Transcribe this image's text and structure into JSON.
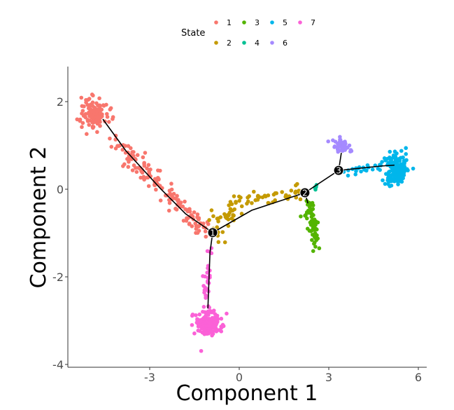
{
  "chart_data": {
    "type": "scatter",
    "xlabel": "Component 1",
    "ylabel": "Component 2",
    "xlim": [
      -5.8,
      6.3
    ],
    "ylim": [
      -4.05,
      2.8
    ],
    "xticks": [
      -3,
      0,
      3,
      6
    ],
    "yticks": [
      2,
      0,
      -2,
      -4
    ],
    "grid": false,
    "legend": {
      "title": "State",
      "placement": "top",
      "entries": [
        "1",
        "2",
        "3",
        "4",
        "5",
        "6",
        "7"
      ]
    },
    "colors": {
      "1": "#F8766D",
      "2": "#C49A00",
      "3": "#53B400",
      "4": "#00C094",
      "5": "#00B6EB",
      "6": "#A58AFF",
      "7": "#FB61D7"
    },
    "clusters": [
      {
        "state": "1",
        "center": [
          -4.85,
          1.76
        ],
        "sd": [
          0.22,
          0.18
        ],
        "n": 120
      },
      {
        "state": "1",
        "from": [
          -4.3,
          1.15
        ],
        "to": [
          -1.1,
          -0.95
        ],
        "spread": 0.12,
        "n": 150
      },
      {
        "state": "2",
        "from": [
          -0.85,
          -1.0
        ],
        "to": [
          0.0,
          -0.35
        ],
        "spread": 0.15,
        "n": 45
      },
      {
        "state": "2",
        "from": [
          0.1,
          -0.3
        ],
        "to": [
          2.1,
          -0.05
        ],
        "spread": 0.08,
        "n": 40
      },
      {
        "state": "3",
        "from": [
          2.3,
          -0.35
        ],
        "to": [
          2.55,
          -0.85
        ],
        "spread": 0.12,
        "n": 40
      },
      {
        "state": "3",
        "from": [
          2.55,
          -0.9
        ],
        "to": [
          2.45,
          -1.35
        ],
        "spread": 0.08,
        "n": 20
      },
      {
        "state": "4",
        "from": [
          2.5,
          -0.05
        ],
        "to": [
          2.6,
          0.08
        ],
        "spread": 0.02,
        "n": 5
      },
      {
        "state": "5",
        "center": [
          5.25,
          0.48
        ],
        "sd": [
          0.18,
          0.18
        ],
        "n": 160
      },
      {
        "state": "5",
        "from": [
          3.5,
          0.4
        ],
        "to": [
          4.9,
          0.55
        ],
        "spread": 0.05,
        "n": 25
      },
      {
        "state": "6",
        "center": [
          3.42,
          1.0
        ],
        "sd": [
          0.14,
          0.08
        ],
        "n": 60
      },
      {
        "state": "7",
        "center": [
          -1.05,
          -3.07
        ],
        "sd": [
          0.22,
          0.14
        ],
        "n": 150
      },
      {
        "state": "7",
        "from": [
          -1.0,
          -1.3
        ],
        "to": [
          -1.15,
          -2.7
        ],
        "spread": 0.06,
        "n": 30
      }
    ],
    "trajectory": [
      [
        [
          -4.57,
          1.6
        ],
        [
          -3.8,
          0.88
        ],
        [
          -2.62,
          0.0
        ],
        [
          -1.8,
          -0.56
        ],
        [
          -0.89,
          -0.99
        ]
      ],
      [
        [
          -0.89,
          -0.99
        ],
        [
          -0.98,
          -1.44
        ],
        [
          -1.05,
          -2.72
        ]
      ],
      [
        [
          -0.89,
          -0.99
        ],
        [
          0.42,
          -0.48
        ],
        [
          2.2,
          -0.08
        ]
      ],
      [
        [
          2.2,
          -0.08
        ],
        [
          2.3,
          -0.32
        ]
      ],
      [
        [
          2.2,
          -0.08
        ],
        [
          3.33,
          0.43
        ]
      ],
      [
        [
          3.33,
          0.43
        ],
        [
          3.42,
          0.83
        ]
      ],
      [
        [
          3.33,
          0.43
        ],
        [
          4.76,
          0.53
        ],
        [
          5.2,
          0.55
        ]
      ]
    ],
    "branch_points": [
      {
        "label": "1",
        "x": -0.89,
        "y": -0.99
      },
      {
        "label": "2",
        "x": 2.2,
        "y": -0.08
      },
      {
        "label": "3",
        "x": 3.33,
        "y": 0.43
      }
    ]
  }
}
